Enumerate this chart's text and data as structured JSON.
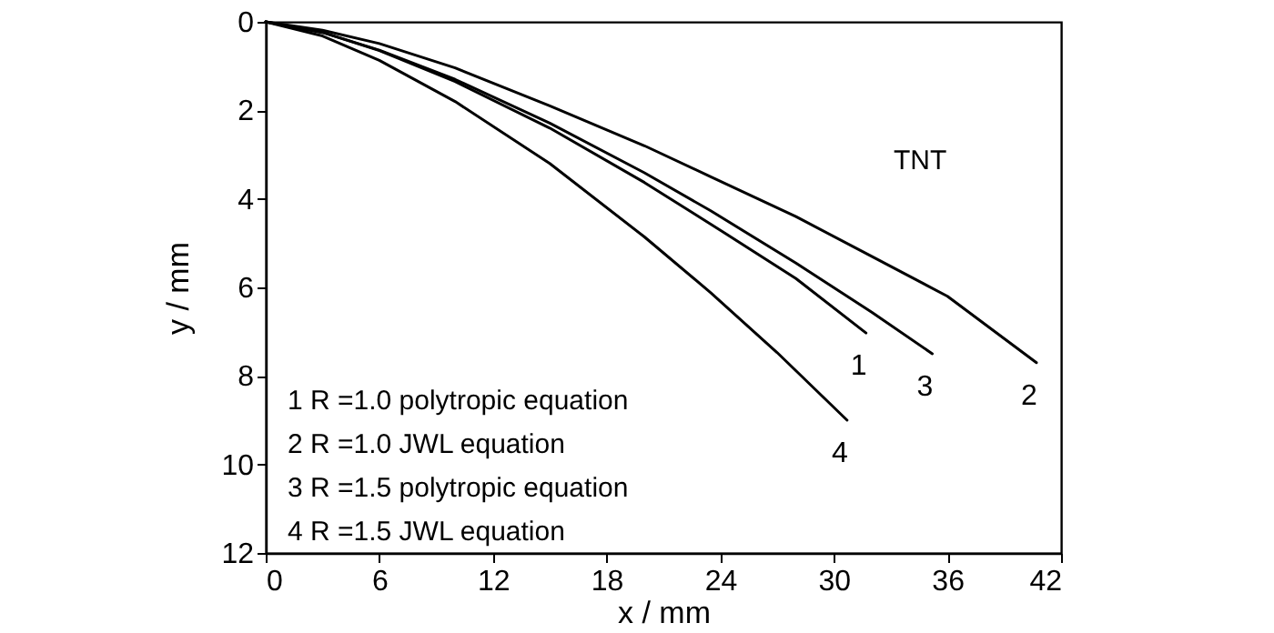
{
  "chart_data": {
    "type": "line",
    "xlabel": "x / mm",
    "ylabel": "y / mm",
    "xlim": [
      0,
      42
    ],
    "xticks": [
      0,
      6,
      12,
      18,
      24,
      30,
      36,
      42
    ],
    "ylim": [
      12,
      0
    ],
    "yticks": [
      0,
      2,
      4,
      6,
      8,
      10,
      12
    ],
    "grid": false,
    "legend": false,
    "annotations": [
      "TNT",
      "1  R =1.0  polytropic equation",
      "2  R =1.0  JWL equation",
      "3  R =1.5  polytropic equation",
      "4  R =1.5  JWL equation"
    ],
    "series": [
      {
        "name": "1",
        "color": "#000000",
        "x": [
          0,
          3,
          6,
          10,
          15,
          20,
          23.5,
          28,
          31.7
        ],
        "values": [
          0,
          0.24,
          0.65,
          1.35,
          2.4,
          3.63,
          4.57,
          5.8,
          7.03
        ]
      },
      {
        "name": "2",
        "color": "#000000",
        "x": [
          0,
          3,
          6,
          10,
          15,
          20,
          23.5,
          28,
          32,
          36,
          40.7
        ],
        "values": [
          0,
          0.19,
          0.49,
          1.04,
          1.9,
          2.8,
          3.5,
          4.4,
          5.3,
          6.2,
          7.7
        ]
      },
      {
        "name": "3",
        "color": "#000000",
        "x": [
          0,
          3,
          6,
          10,
          15,
          20,
          23.5,
          28,
          32,
          35.2
        ],
        "values": [
          0,
          0.24,
          0.64,
          1.3,
          2.29,
          3.41,
          4.27,
          5.45,
          6.56,
          7.5
        ]
      },
      {
        "name": "4",
        "color": "#000000",
        "x": [
          0,
          3,
          6,
          10,
          15,
          20,
          23.5,
          27,
          30.7
        ],
        "values": [
          0,
          0.32,
          0.87,
          1.8,
          3.2,
          4.86,
          6.12,
          7.47,
          9.0
        ]
      }
    ]
  }
}
